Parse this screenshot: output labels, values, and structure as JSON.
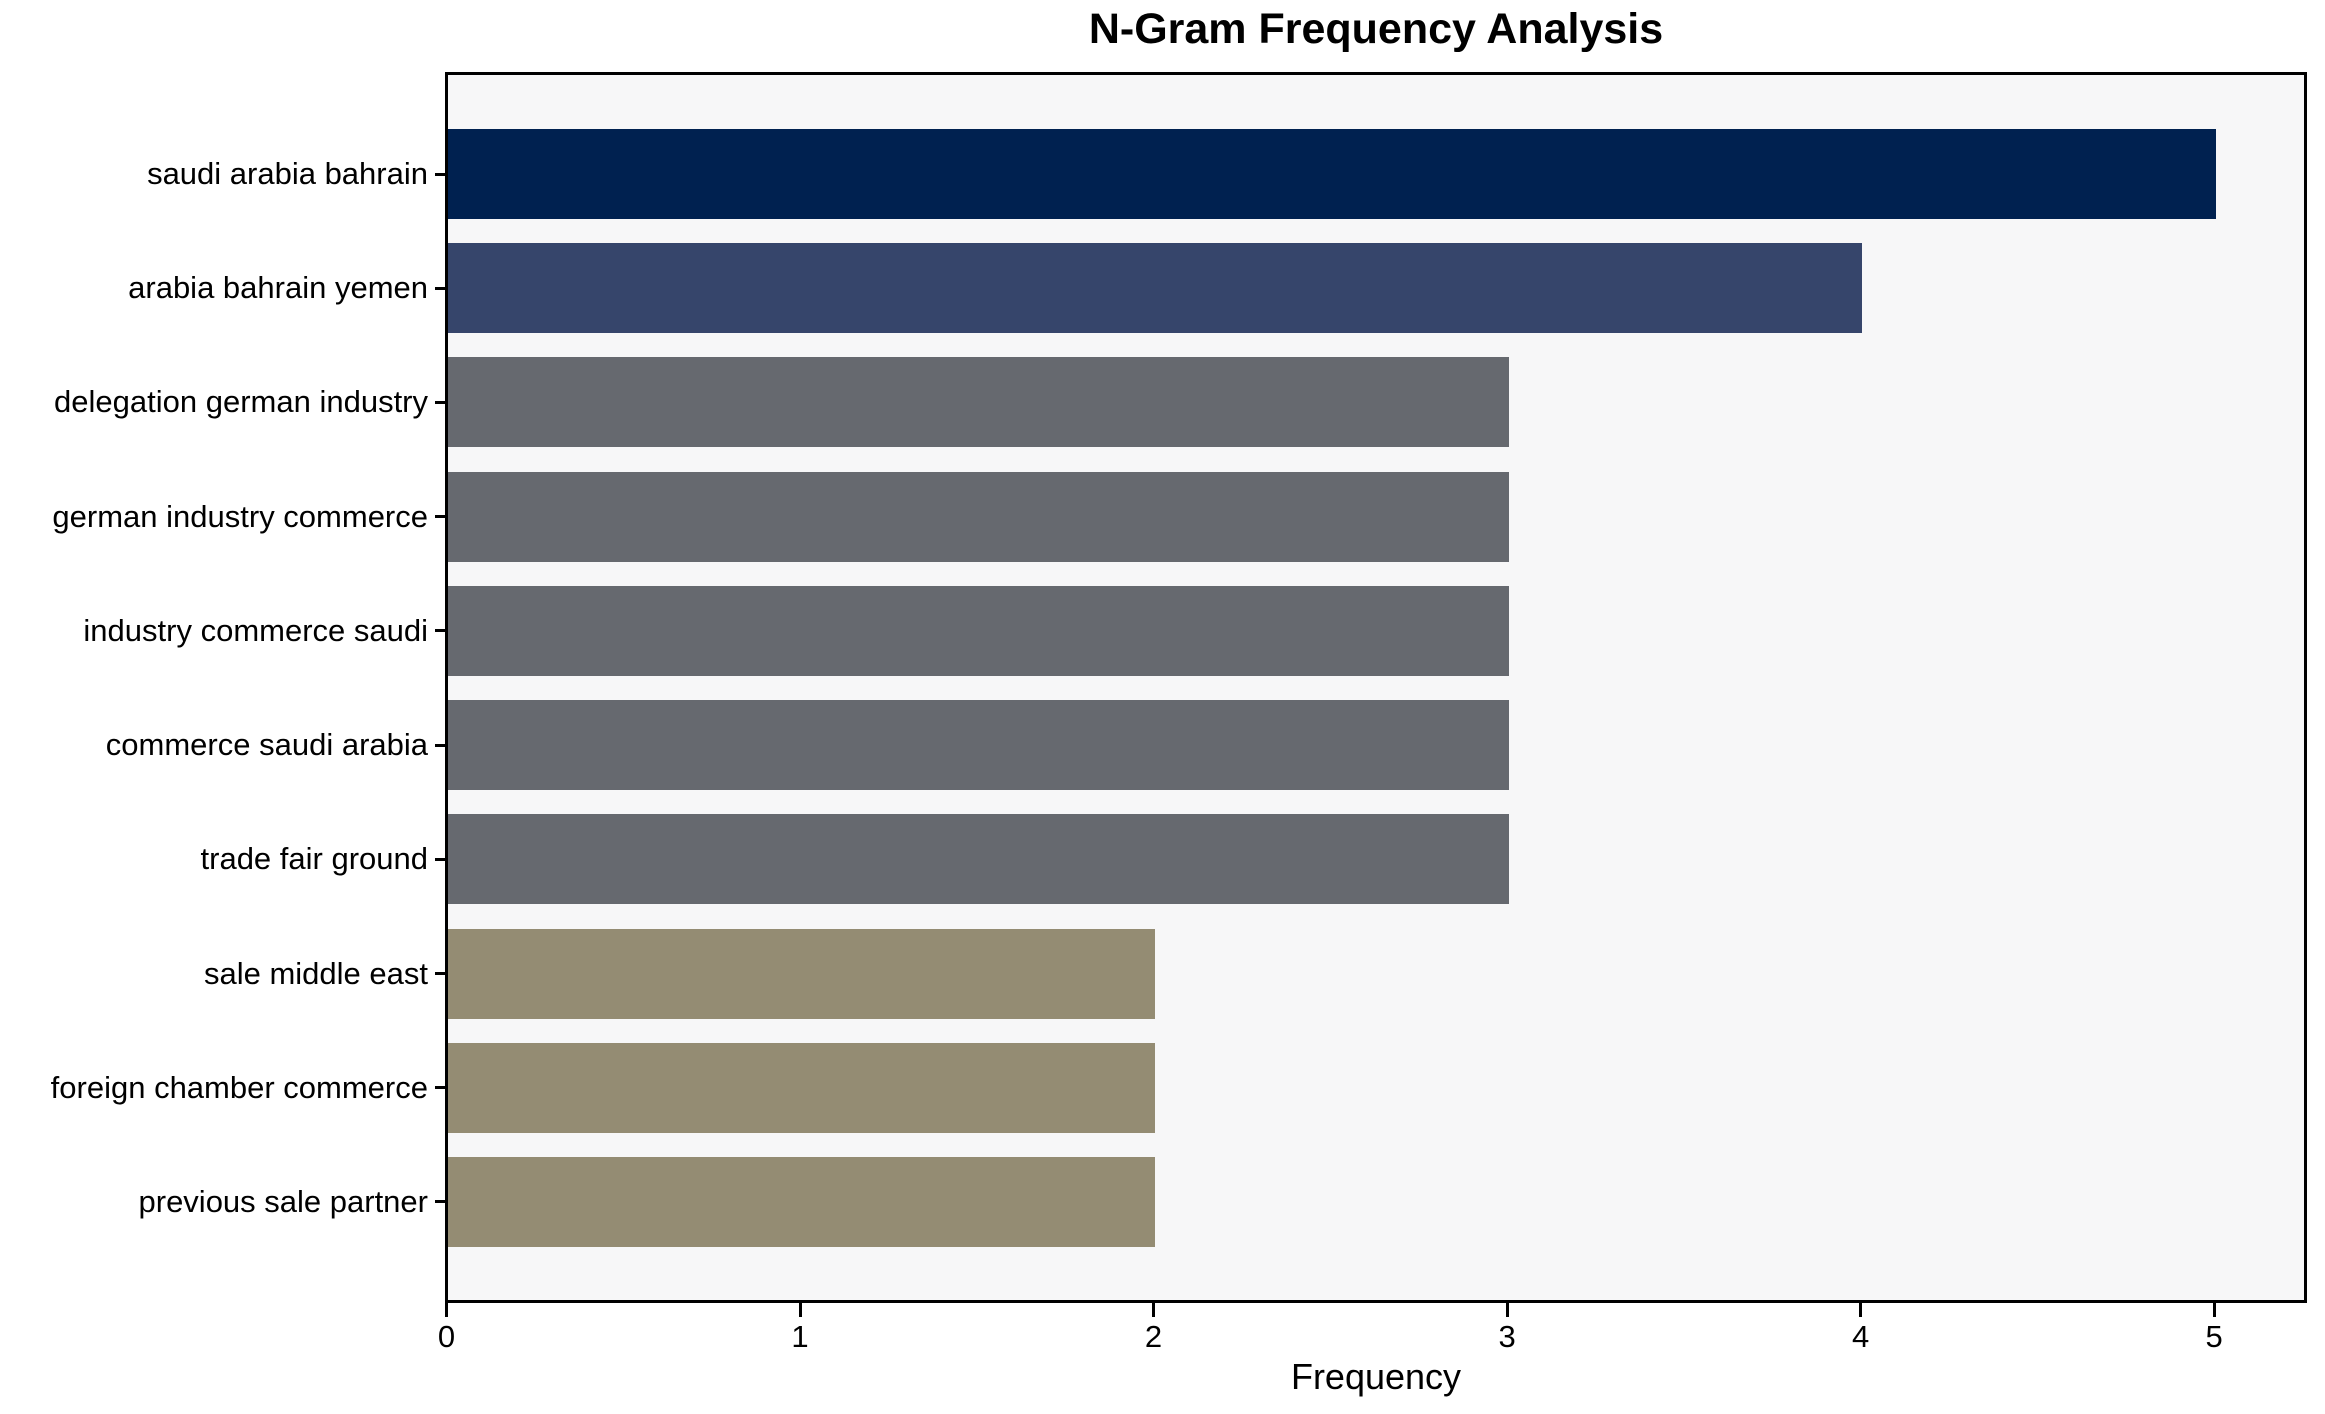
{
  "chart_data": {
    "type": "bar",
    "orientation": "horizontal",
    "title": "N-Gram Frequency Analysis",
    "xlabel": "Frequency",
    "ylabel": "",
    "categories": [
      "saudi arabia bahrain",
      "arabia bahrain yemen",
      "delegation german industry",
      "german industry commerce",
      "industry commerce saudi",
      "commerce saudi arabia",
      "trade fair ground",
      "sale middle east",
      "foreign chamber commerce",
      "previous sale partner"
    ],
    "values": [
      5,
      4,
      3,
      3,
      3,
      3,
      3,
      2,
      2,
      2
    ],
    "bar_colors": [
      "#002150",
      "#36456b",
      "#66696f",
      "#66696f",
      "#66696f",
      "#66696f",
      "#66696f",
      "#948c73",
      "#948c73",
      "#948c73"
    ],
    "xticks": [
      0,
      1,
      2,
      3,
      4,
      5
    ],
    "xlim": [
      0,
      5.25
    ],
    "grid": false,
    "legend_position": "none",
    "plot_background": "#f7f7f8",
    "figure_background": "#ffffff",
    "spine_color": "#000000"
  }
}
